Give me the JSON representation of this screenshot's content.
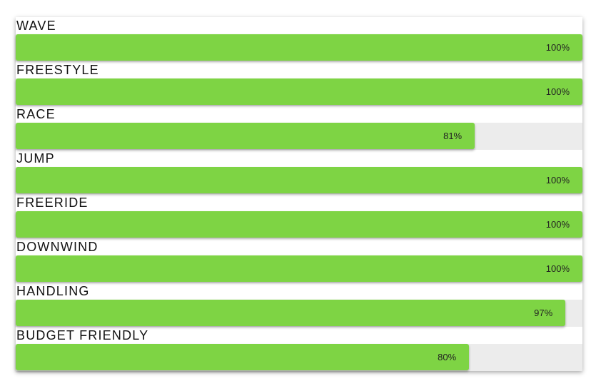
{
  "bars": [
    {
      "label": "WAVE",
      "value": 100,
      "value_label": "100%"
    },
    {
      "label": "FREESTYLE",
      "value": 100,
      "value_label": "100%"
    },
    {
      "label": "RACE",
      "value": 81,
      "value_label": "81%"
    },
    {
      "label": "JUMP",
      "value": 100,
      "value_label": "100%"
    },
    {
      "label": "FREERIDE",
      "value": 100,
      "value_label": "100%"
    },
    {
      "label": "DOWNWIND",
      "value": 100,
      "value_label": "100%"
    },
    {
      "label": "HANDLING",
      "value": 97,
      "value_label": "97%"
    },
    {
      "label": "BUDGET FRIENDLY",
      "value": 80,
      "value_label": "80%"
    }
  ],
  "color": "#7ed444"
}
